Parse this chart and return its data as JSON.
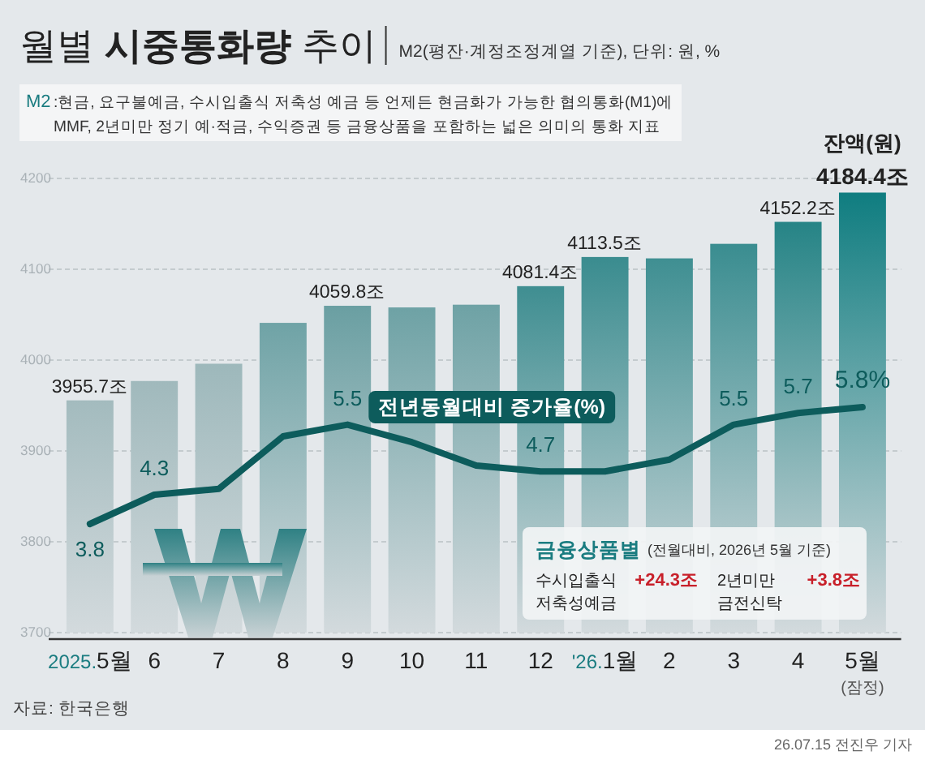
{
  "chart_data": {
    "type": "bar",
    "title": "월별 시중통화량 추이",
    "subtitle": "M2(평잔·계정조정계열 기준), 단위: 원, %",
    "categories": [
      "2025.5월",
      "6",
      "7",
      "8",
      "9",
      "10",
      "11",
      "12",
      "'26.1월",
      "2",
      "3",
      "4",
      "5월"
    ],
    "series": [
      {
        "name": "잔액(원)",
        "colors": [
          "#a3bbbe",
          "#a0b9bc",
          "#9db8bb",
          "#6fa3a6",
          "#6a9fa2",
          "#6ea2a5",
          "#6ea2a5",
          "#3f8e91",
          "#3a8c8f",
          "#3f8f92",
          "#3a8d90",
          "#268486",
          "#0f7d80"
        ],
        "values": [
          3955.7,
          3977,
          3996,
          4041,
          4059.8,
          4058,
          4061,
          4081.4,
          4113.5,
          4112,
          4128,
          4152.2,
          4184.4
        ],
        "value_labels": [
          "3955.7조",
          null,
          null,
          null,
          "4059.8조",
          null,
          null,
          "4081.4조",
          "4113.5조",
          null,
          null,
          "4152.2조",
          "4184.4조"
        ]
      },
      {
        "name": "전년동월대비 증가율(%)",
        "type": "line",
        "axis": "y2",
        "color": "#0d5c5c",
        "values": [
          3.8,
          4.3,
          4.4,
          5.3,
          5.5,
          5.2,
          4.8,
          4.7,
          4.7,
          4.9,
          5.5,
          5.7,
          5.8
        ],
        "value_labels": [
          "3.8",
          "4.3",
          null,
          null,
          "5.5",
          null,
          null,
          "4.7",
          null,
          null,
          "5.5",
          "5.7",
          "5.8%"
        ]
      }
    ],
    "ylim": [
      3700,
      4200
    ],
    "yticks": [
      3700,
      3800,
      3900,
      4000,
      4100,
      4200
    ],
    "grid": "y",
    "line_style": "solid",
    "annotations": [
      "M2",
      ":현금, 요구불예금, 수시입출식 저축성 예금 등 언제든 현금화가 가능한 협의통화(M1)에\nMMF, 2년미만 정기 예·적금, 수익증권 등 금융상품을 포함하는 넓은 의미의 통화 지표",
      "금융상품별",
      "(전월대비, 2026년 5월 기준)",
      "수시입출식\n저축성예금",
      "+24.3조",
      "2년미만\n금전신탁",
      "+3.8조",
      "(잠정)",
      "자료: 한국은행",
      "26.07.15 전진우 기자"
    ]
  }
}
